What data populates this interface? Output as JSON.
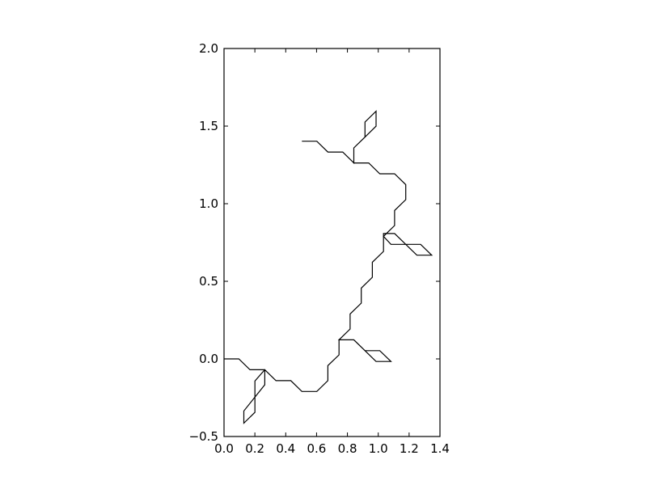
{
  "chart_data": {
    "type": "line",
    "title": "",
    "xlabel": "",
    "ylabel": "",
    "xlim": [
      0.0,
      1.4
    ],
    "ylim": [
      -0.5,
      2.0
    ],
    "grid": false,
    "xticks": [
      0.0,
      0.2,
      0.4,
      0.6,
      0.8,
      1.0,
      1.2,
      1.4
    ],
    "yticks": [
      -0.5,
      0.0,
      0.5,
      1.0,
      1.5,
      2.0
    ],
    "xtick_labels": [
      "0.0",
      "0.2",
      "0.4",
      "0.6",
      "0.8",
      "1.0",
      "1.2",
      "1.4"
    ],
    "ytick_labels": [
      "−0.5",
      "0.0",
      "0.5",
      "1.0",
      "1.5",
      "2.0"
    ],
    "line_color": "#000000",
    "series": [
      {
        "points": [
          [
            0.0,
            0.0
          ],
          [
            0.0962,
            0.0
          ],
          [
            0.1683,
            -0.0699
          ],
          [
            0.2645,
            -0.0699
          ],
          [
            0.2645,
            -0.1669
          ],
          [
            0.1283,
            -0.3356
          ],
          [
            0.1283,
            -0.4142
          ],
          [
            0.2004,
            -0.3443
          ],
          [
            0.2004,
            -0.1425
          ],
          [
            0.2645,
            -0.0699
          ],
          [
            0.3367,
            -0.1399
          ],
          [
            0.4329,
            -0.1399
          ],
          [
            0.505,
            -0.2098
          ],
          [
            0.6012,
            -0.2098
          ],
          [
            0.6733,
            -0.1399
          ],
          [
            0.6733,
            -0.0432
          ],
          [
            0.7455,
            0.0263
          ],
          [
            0.7455,
            0.1231
          ],
          [
            0.8417,
            0.1231
          ],
          [
            0.9138,
            0.0532
          ],
          [
            1.01,
            0.0532
          ],
          [
            1.0821,
            -0.0167
          ],
          [
            0.9859,
            -0.0167
          ],
          [
            0.8417,
            0.1231
          ],
          [
            0.7455,
            0.1231
          ],
          [
            0.8176,
            0.1929
          ],
          [
            0.8176,
            0.2896
          ],
          [
            0.8898,
            0.3596
          ],
          [
            0.8898,
            0.4563
          ],
          [
            0.9619,
            0.5262
          ],
          [
            0.9619,
            0.6229
          ],
          [
            1.034,
            0.6929
          ],
          [
            1.034,
            0.8078
          ],
          [
            1.1061,
            0.8078
          ],
          [
            1.1783,
            0.7379
          ],
          [
            1.2745,
            0.7379
          ],
          [
            1.3466,
            0.668
          ],
          [
            1.2504,
            0.668
          ],
          [
            1.1783,
            0.7379
          ],
          [
            1.0821,
            0.7379
          ],
          [
            1.034,
            0.7896
          ],
          [
            1.1061,
            0.8595
          ],
          [
            1.1061,
            0.9562
          ],
          [
            1.1783,
            1.0262
          ],
          [
            1.1783,
            1.1229
          ],
          [
            1.1061,
            1.1928
          ],
          [
            1.01,
            1.1928
          ],
          [
            0.9378,
            1.2627
          ],
          [
            0.8417,
            1.2627
          ],
          [
            0.8417,
            1.3594
          ],
          [
            0.9138,
            1.4294
          ],
          [
            0.9138,
            1.5261
          ],
          [
            0.9859,
            1.596
          ],
          [
            0.9859,
            1.4993
          ],
          [
            0.9138,
            1.4294
          ],
          [
            0.8417,
            1.3594
          ],
          [
            0.8417,
            1.2627
          ],
          [
            0.7695,
            1.3327
          ],
          [
            0.6733,
            1.3327
          ],
          [
            0.6012,
            1.4026
          ],
          [
            0.505,
            1.4026
          ]
        ]
      }
    ]
  }
}
